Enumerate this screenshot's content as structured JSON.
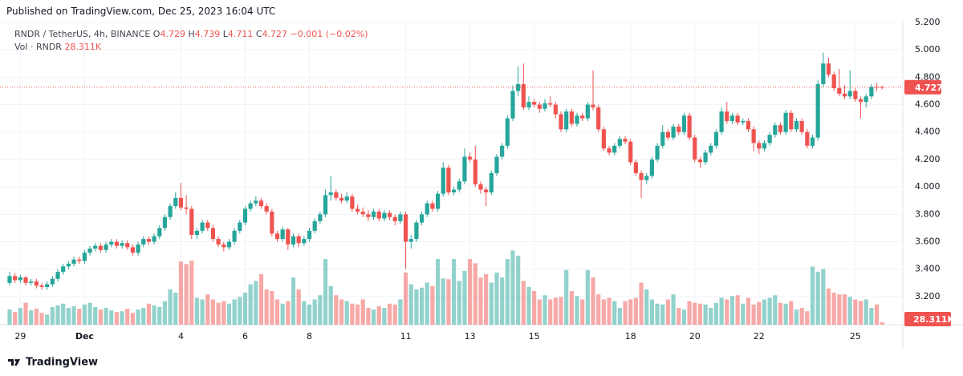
{
  "published": "Published on TradingView.com, Dec 25, 2023 16:04 UTC",
  "footer": "TradingView",
  "chart_data": {
    "type": "candlestick",
    "symbol": "RNDR / TetherUS, 4h, BINANCE",
    "legend_prefixes": [
      "O",
      "H",
      "L",
      "C"
    ],
    "change_label": "−0.001 (−0.02%)",
    "volume_title": "Vol · RNDR",
    "last_volume_label": "28.311K",
    "up_color": "#26a69a",
    "down_color": "#ef5350",
    "ylim": [
      2.995,
      5.217
    ],
    "vlim": [
      0,
      1000
    ],
    "grid": true,
    "yticks": [
      {
        "value": 3.2,
        "label": "3.200"
      },
      {
        "value": 3.4,
        "label": "3.400"
      },
      {
        "value": 3.6,
        "label": "3.600"
      },
      {
        "value": 3.8,
        "label": "3.800"
      },
      {
        "value": 4.0,
        "label": "4.000"
      },
      {
        "value": 4.2,
        "label": "4.200"
      },
      {
        "value": 4.4,
        "label": "4.400"
      },
      {
        "value": 4.6,
        "label": "4.600"
      },
      {
        "value": 4.8,
        "label": "4.800"
      },
      {
        "value": 5.0,
        "label": "5.000"
      },
      {
        "value": 5.2,
        "label": "5.200"
      }
    ],
    "xticks": [
      {
        "value": 2,
        "label": "29"
      },
      {
        "value": 14,
        "label": "Dec"
      },
      {
        "value": 32,
        "label": "4"
      },
      {
        "value": 44,
        "label": "6"
      },
      {
        "value": 56,
        "label": "8"
      },
      {
        "value": 74,
        "label": "11"
      },
      {
        "value": 86,
        "label": "13"
      },
      {
        "value": 98,
        "label": "15"
      },
      {
        "value": 116,
        "label": "18"
      },
      {
        "value": 128,
        "label": "20"
      },
      {
        "value": 140,
        "label": "22"
      },
      {
        "value": 158,
        "label": "25"
      }
    ],
    "ohlc": [
      [
        3.3,
        3.38,
        3.28,
        3.35
      ],
      [
        3.35,
        3.37,
        3.3,
        3.32
      ],
      [
        3.32,
        3.36,
        3.3,
        3.34
      ],
      [
        3.34,
        3.35,
        3.28,
        3.3
      ],
      [
        3.3,
        3.33,
        3.28,
        3.31
      ],
      [
        3.31,
        3.33,
        3.26,
        3.28
      ],
      [
        3.28,
        3.3,
        3.25,
        3.27
      ],
      [
        3.27,
        3.31,
        3.25,
        3.29
      ],
      [
        3.29,
        3.35,
        3.27,
        3.33
      ],
      [
        3.33,
        3.4,
        3.31,
        3.38
      ],
      [
        3.38,
        3.44,
        3.36,
        3.42
      ],
      [
        3.42,
        3.46,
        3.4,
        3.44
      ],
      [
        3.44,
        3.49,
        3.42,
        3.47
      ],
      [
        3.47,
        3.49,
        3.44,
        3.46
      ],
      [
        3.46,
        3.54,
        3.44,
        3.52
      ],
      [
        3.52,
        3.57,
        3.5,
        3.55
      ],
      [
        3.55,
        3.59,
        3.53,
        3.57
      ],
      [
        3.57,
        3.59,
        3.52,
        3.54
      ],
      [
        3.54,
        3.6,
        3.52,
        3.58
      ],
      [
        3.58,
        3.62,
        3.56,
        3.6
      ],
      [
        3.6,
        3.62,
        3.55,
        3.57
      ],
      [
        3.57,
        3.61,
        3.55,
        3.59
      ],
      [
        3.59,
        3.61,
        3.54,
        3.56
      ],
      [
        3.56,
        3.58,
        3.5,
        3.52
      ],
      [
        3.52,
        3.6,
        3.5,
        3.58
      ],
      [
        3.58,
        3.64,
        3.56,
        3.62
      ],
      [
        3.62,
        3.64,
        3.58,
        3.6
      ],
      [
        3.6,
        3.66,
        3.58,
        3.64
      ],
      [
        3.64,
        3.72,
        3.62,
        3.7
      ],
      [
        3.7,
        3.8,
        3.68,
        3.78
      ],
      [
        3.78,
        3.88,
        3.76,
        3.86
      ],
      [
        3.86,
        3.96,
        3.84,
        3.92
      ],
      [
        3.92,
        4.03,
        3.83,
        3.85
      ],
      [
        3.85,
        3.94,
        3.8,
        3.84
      ],
      [
        3.84,
        3.86,
        3.62,
        3.65
      ],
      [
        3.65,
        3.7,
        3.62,
        3.68
      ],
      [
        3.68,
        3.76,
        3.66,
        3.74
      ],
      [
        3.74,
        3.76,
        3.68,
        3.7
      ],
      [
        3.7,
        3.72,
        3.6,
        3.62
      ],
      [
        3.62,
        3.64,
        3.56,
        3.58
      ],
      [
        3.58,
        3.6,
        3.53,
        3.56
      ],
      [
        3.56,
        3.62,
        3.54,
        3.6
      ],
      [
        3.6,
        3.7,
        3.58,
        3.68
      ],
      [
        3.68,
        3.76,
        3.66,
        3.74
      ],
      [
        3.74,
        3.86,
        3.72,
        3.84
      ],
      [
        3.84,
        3.9,
        3.82,
        3.88
      ],
      [
        3.88,
        3.93,
        3.86,
        3.9
      ],
      [
        3.9,
        3.92,
        3.84,
        3.86
      ],
      [
        3.86,
        3.88,
        3.8,
        3.82
      ],
      [
        3.82,
        3.84,
        3.64,
        3.66
      ],
      [
        3.66,
        3.68,
        3.6,
        3.62
      ],
      [
        3.62,
        3.71,
        3.6,
        3.69
      ],
      [
        3.69,
        3.7,
        3.54,
        3.58
      ],
      [
        3.58,
        3.66,
        3.56,
        3.64
      ],
      [
        3.64,
        3.66,
        3.56,
        3.59
      ],
      [
        3.59,
        3.64,
        3.57,
        3.62
      ],
      [
        3.62,
        3.7,
        3.6,
        3.68
      ],
      [
        3.68,
        3.77,
        3.66,
        3.75
      ],
      [
        3.75,
        3.82,
        3.73,
        3.8
      ],
      [
        3.8,
        3.98,
        3.78,
        3.94
      ],
      [
        3.94,
        4.08,
        3.9,
        3.96
      ],
      [
        3.96,
        3.98,
        3.9,
        3.92
      ],
      [
        3.92,
        3.95,
        3.88,
        3.9
      ],
      [
        3.9,
        3.96,
        3.88,
        3.93
      ],
      [
        3.93,
        3.95,
        3.82,
        3.84
      ],
      [
        3.84,
        3.87,
        3.8,
        3.82
      ],
      [
        3.82,
        3.85,
        3.78,
        3.8
      ],
      [
        3.8,
        3.83,
        3.75,
        3.78
      ],
      [
        3.78,
        3.84,
        3.76,
        3.82
      ],
      [
        3.82,
        3.84,
        3.75,
        3.77
      ],
      [
        3.77,
        3.83,
        3.75,
        3.81
      ],
      [
        3.81,
        3.83,
        3.76,
        3.78
      ],
      [
        3.78,
        3.8,
        3.72,
        3.75
      ],
      [
        3.75,
        3.82,
        3.73,
        3.8
      ],
      [
        3.8,
        3.82,
        3.4,
        3.6
      ],
      [
        3.6,
        3.65,
        3.55,
        3.62
      ],
      [
        3.62,
        3.76,
        3.6,
        3.74
      ],
      [
        3.74,
        3.82,
        3.72,
        3.8
      ],
      [
        3.8,
        3.9,
        3.78,
        3.88
      ],
      [
        3.88,
        3.9,
        3.82,
        3.84
      ],
      [
        3.84,
        3.97,
        3.82,
        3.95
      ],
      [
        3.95,
        4.18,
        3.93,
        4.14
      ],
      [
        4.14,
        4.16,
        3.94,
        3.96
      ],
      [
        3.96,
        4.0,
        3.94,
        3.98
      ],
      [
        3.98,
        4.06,
        3.96,
        4.04
      ],
      [
        4.04,
        4.28,
        4.02,
        4.22
      ],
      [
        4.22,
        4.25,
        4.18,
        4.2
      ],
      [
        4.2,
        4.3,
        4.0,
        4.02
      ],
      [
        4.02,
        4.04,
        3.95,
        3.98
      ],
      [
        3.98,
        4.0,
        3.86,
        3.96
      ],
      [
        3.96,
        4.12,
        3.94,
        4.1
      ],
      [
        4.1,
        4.24,
        4.08,
        4.22
      ],
      [
        4.22,
        4.32,
        4.2,
        4.3
      ],
      [
        4.3,
        4.52,
        4.28,
        4.5
      ],
      [
        4.5,
        4.74,
        4.48,
        4.7
      ],
      [
        4.7,
        4.88,
        4.66,
        4.75
      ],
      [
        4.75,
        4.9,
        4.56,
        4.58
      ],
      [
        4.58,
        4.66,
        4.56,
        4.62
      ],
      [
        4.62,
        4.64,
        4.58,
        4.6
      ],
      [
        4.6,
        4.62,
        4.54,
        4.57
      ],
      [
        4.57,
        4.64,
        4.55,
        4.61
      ],
      [
        4.61,
        4.66,
        4.58,
        4.6
      ],
      [
        4.6,
        4.62,
        4.5,
        4.53
      ],
      [
        4.53,
        4.55,
        4.4,
        4.42
      ],
      [
        4.42,
        4.57,
        4.4,
        4.55
      ],
      [
        4.55,
        4.57,
        4.44,
        4.46
      ],
      [
        4.46,
        4.54,
        4.44,
        4.52
      ],
      [
        4.52,
        4.54,
        4.48,
        4.5
      ],
      [
        4.5,
        4.62,
        4.48,
        4.6
      ],
      [
        4.6,
        4.85,
        4.56,
        4.58
      ],
      [
        4.58,
        4.6,
        4.4,
        4.42
      ],
      [
        4.42,
        4.44,
        4.26,
        4.28
      ],
      [
        4.28,
        4.3,
        4.23,
        4.25
      ],
      [
        4.25,
        4.32,
        4.23,
        4.3
      ],
      [
        4.3,
        4.37,
        4.28,
        4.35
      ],
      [
        4.35,
        4.37,
        4.31,
        4.33
      ],
      [
        4.33,
        4.35,
        4.16,
        4.18
      ],
      [
        4.18,
        4.2,
        4.08,
        4.1
      ],
      [
        4.1,
        4.12,
        3.92,
        4.05
      ],
      [
        4.05,
        4.1,
        4.02,
        4.08
      ],
      [
        4.08,
        4.22,
        4.06,
        4.2
      ],
      [
        4.2,
        4.32,
        4.18,
        4.3
      ],
      [
        4.3,
        4.45,
        4.28,
        4.4
      ],
      [
        4.4,
        4.42,
        4.34,
        4.36
      ],
      [
        4.36,
        4.46,
        4.34,
        4.44
      ],
      [
        4.44,
        4.46,
        4.38,
        4.4
      ],
      [
        4.4,
        4.54,
        4.38,
        4.52
      ],
      [
        4.52,
        4.54,
        4.34,
        4.36
      ],
      [
        4.36,
        4.38,
        4.18,
        4.2
      ],
      [
        4.2,
        4.22,
        4.14,
        4.18
      ],
      [
        4.18,
        4.27,
        4.16,
        4.25
      ],
      [
        4.25,
        4.32,
        4.23,
        4.3
      ],
      [
        4.3,
        4.42,
        4.28,
        4.4
      ],
      [
        4.4,
        4.58,
        4.38,
        4.55
      ],
      [
        4.55,
        4.62,
        4.46,
        4.48
      ],
      [
        4.48,
        4.54,
        4.46,
        4.52
      ],
      [
        4.52,
        4.54,
        4.45,
        4.47
      ],
      [
        4.47,
        4.5,
        4.45,
        4.48
      ],
      [
        4.48,
        4.5,
        4.4,
        4.42
      ],
      [
        4.42,
        4.44,
        4.26,
        4.32
      ],
      [
        4.32,
        4.34,
        4.24,
        4.28
      ],
      [
        4.28,
        4.34,
        4.26,
        4.32
      ],
      [
        4.32,
        4.4,
        4.3,
        4.38
      ],
      [
        4.38,
        4.47,
        4.36,
        4.45
      ],
      [
        4.45,
        4.47,
        4.38,
        4.4
      ],
      [
        4.4,
        4.56,
        4.38,
        4.54
      ],
      [
        4.54,
        4.56,
        4.4,
        4.42
      ],
      [
        4.42,
        4.5,
        4.4,
        4.48
      ],
      [
        4.48,
        4.5,
        4.38,
        4.4
      ],
      [
        4.4,
        4.42,
        4.28,
        4.3
      ],
      [
        4.3,
        4.38,
        4.28,
        4.36
      ],
      [
        4.36,
        4.78,
        4.34,
        4.75
      ],
      [
        4.75,
        4.98,
        4.73,
        4.9
      ],
      [
        4.9,
        4.94,
        4.8,
        4.82
      ],
      [
        4.82,
        4.84,
        4.7,
        4.72
      ],
      [
        4.72,
        4.86,
        4.66,
        4.68
      ],
      [
        4.68,
        4.74,
        4.64,
        4.66
      ],
      [
        4.66,
        4.85,
        4.64,
        4.7
      ],
      [
        4.7,
        4.72,
        4.62,
        4.64
      ],
      [
        4.64,
        4.66,
        4.5,
        4.62
      ],
      [
        4.62,
        4.68,
        4.58,
        4.66
      ],
      [
        4.66,
        4.75,
        4.64,
        4.73
      ],
      [
        4.73,
        4.76,
        4.7,
        4.729
      ],
      [
        4.729,
        4.739,
        4.711,
        4.727
      ]
    ],
    "volume": [
      180,
      150,
      200,
      260,
      170,
      190,
      140,
      120,
      210,
      230,
      250,
      200,
      220,
      190,
      240,
      260,
      210,
      180,
      200,
      170,
      150,
      160,
      190,
      140,
      180,
      200,
      250,
      230,
      210,
      280,
      420,
      380,
      750,
      720,
      760,
      320,
      300,
      360,
      300,
      260,
      280,
      250,
      300,
      330,
      380,
      480,
      520,
      600,
      420,
      400,
      300,
      250,
      280,
      560,
      420,
      280,
      240,
      300,
      350,
      780,
      460,
      350,
      300,
      280,
      250,
      240,
      300,
      200,
      180,
      220,
      200,
      250,
      240,
      300,
      620,
      480,
      420,
      440,
      500,
      460,
      780,
      550,
      540,
      780,
      520,
      640,
      780,
      730,
      560,
      600,
      500,
      620,
      560,
      780,
      880,
      820,
      520,
      450,
      400,
      300,
      350,
      300,
      320,
      330,
      650,
      400,
      340,
      300,
      650,
      560,
      360,
      300,
      320,
      280,
      200,
      280,
      300,
      320,
      500,
      420,
      300,
      250,
      240,
      300,
      360,
      200,
      180,
      280,
      260,
      250,
      240,
      200,
      260,
      320,
      300,
      340,
      350,
      250,
      320,
      240,
      270,
      300,
      320,
      350,
      260,
      250,
      280,
      180,
      200,
      160,
      690,
      630,
      660,
      430,
      380,
      360,
      360,
      330,
      300,
      280,
      300,
      200,
      240,
      28.311
    ]
  }
}
